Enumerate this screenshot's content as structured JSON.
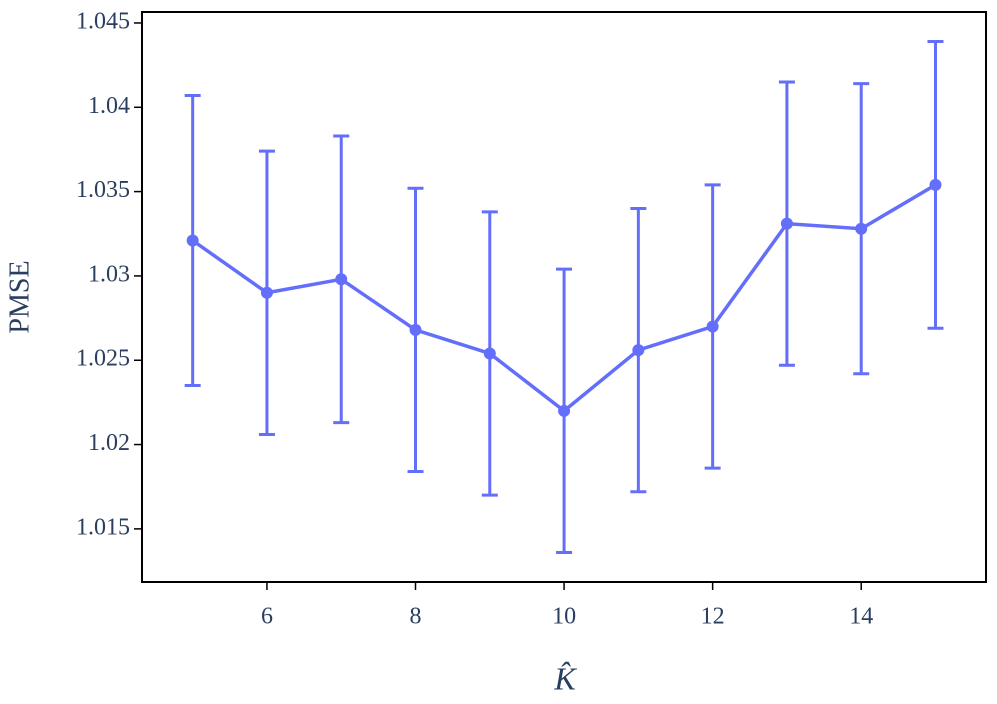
{
  "chart_data": {
    "type": "line",
    "x_label": "K̂",
    "y_label": "PMSE",
    "x": [
      5,
      6,
      7,
      8,
      9,
      10,
      11,
      12,
      13,
      14,
      15
    ],
    "series": [
      {
        "color": "#636efa",
        "values": [
          1.0321,
          1.029,
          1.0298,
          1.0268,
          1.0254,
          1.022,
          1.0256,
          1.027,
          1.0331,
          1.0328,
          1.0354
        ],
        "errors": [
          0.0086,
          0.0084,
          0.0085,
          0.0084,
          0.0084,
          0.0084,
          0.0084,
          0.0084,
          0.0084,
          0.0086,
          0.0085
        ]
      }
    ],
    "xlim": [
      4.318,
      15.68
    ],
    "xticks": [
      6,
      8,
      10,
      12,
      14
    ],
    "ylim": [
      1.01185,
      1.04565
    ],
    "yticks": [
      1.015,
      1.02,
      1.025,
      1.03,
      1.035,
      1.04,
      1.045
    ]
  }
}
